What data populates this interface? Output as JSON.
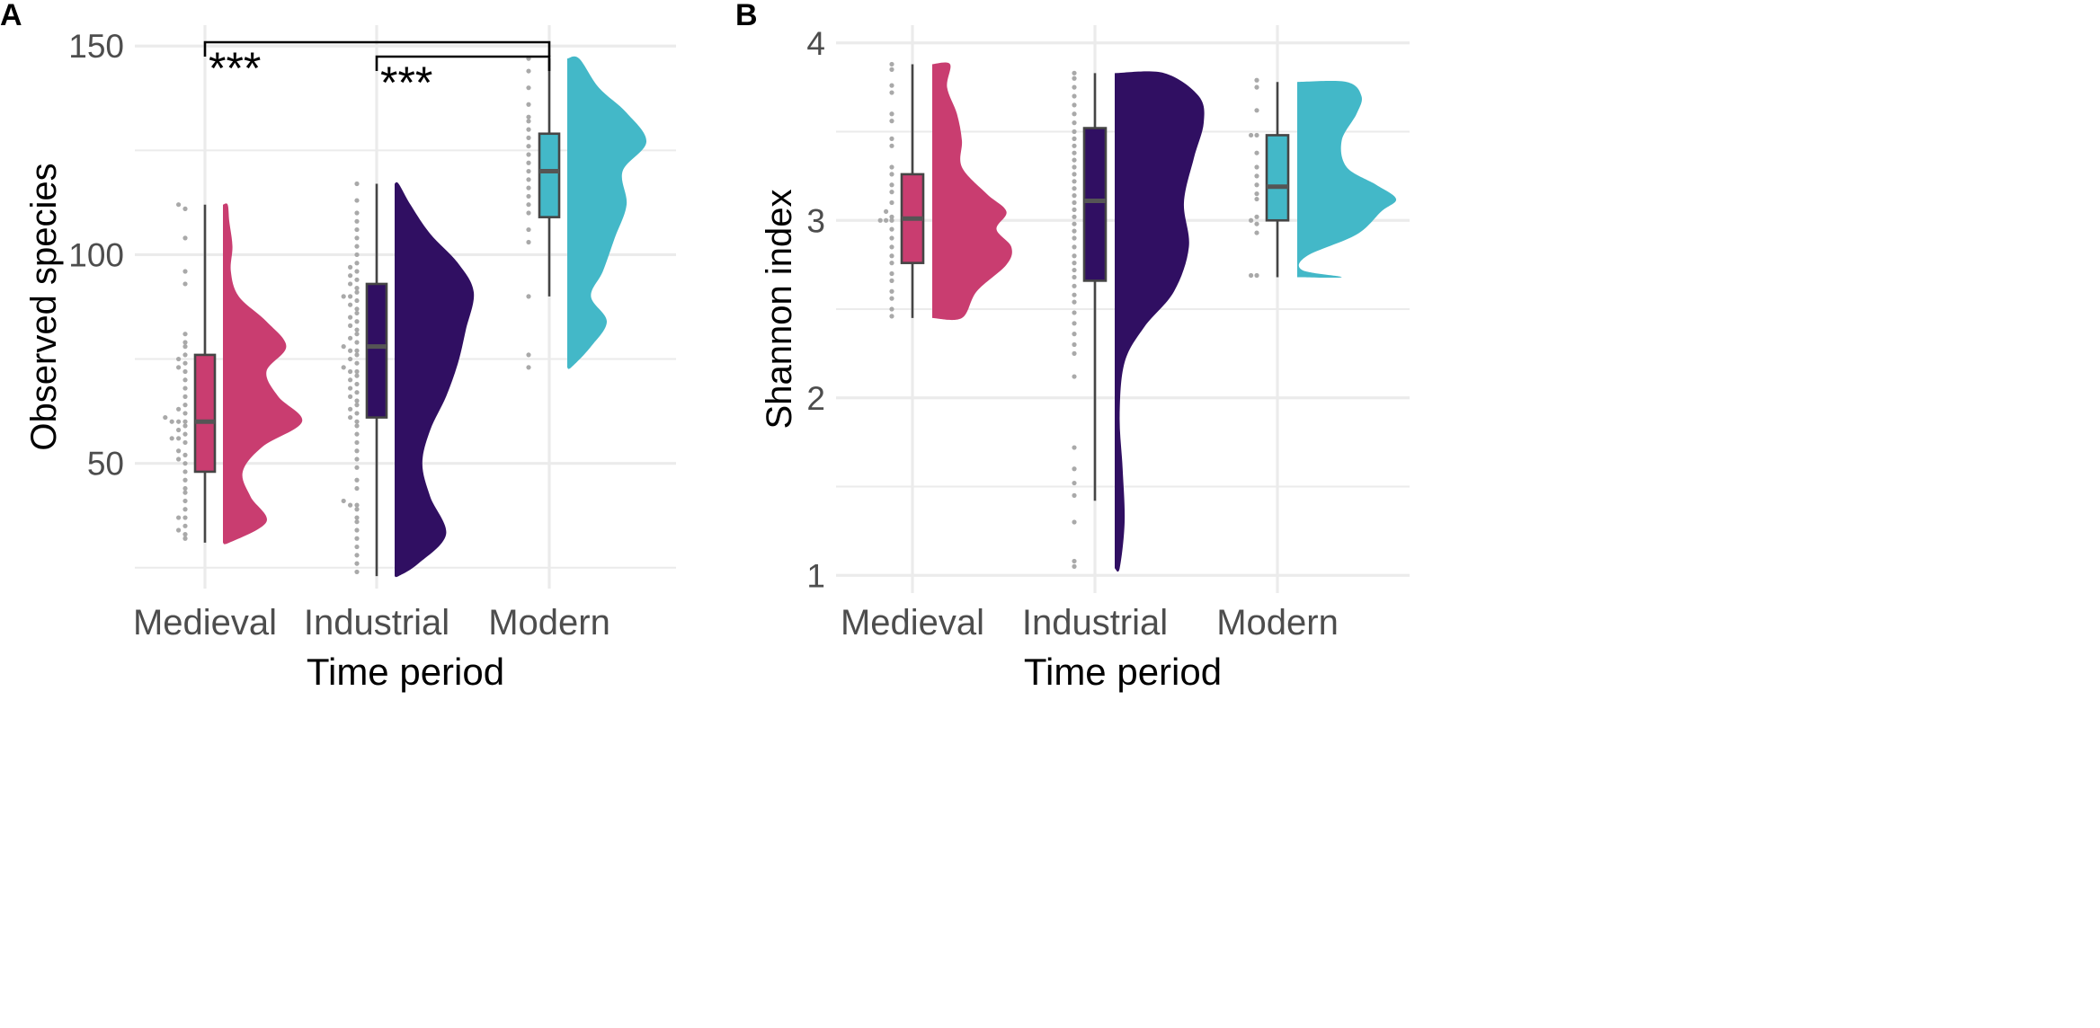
{
  "colors": {
    "grid": "#ebebeb",
    "tick_text": "#4d4d4d",
    "axis_title": "#000000",
    "box_outline": "#454545",
    "dots": "#a9a9a9",
    "medieval": "#c93d70",
    "industrial": "#300f62",
    "modern": "#43b8c8"
  },
  "chart_data": [
    {
      "panel_label": "A",
      "type": "raincloud",
      "xlabel": "Time period",
      "ylabel": "Observed species",
      "ylim": [
        20,
        155
      ],
      "y_major_ticks": [
        50,
        100,
        150
      ],
      "y_minor_ticks": [
        25,
        75,
        125
      ],
      "categories": [
        "Medieval",
        "Industrial",
        "Modern"
      ],
      "grid": true,
      "series": [
        {
          "category": "Medieval",
          "box": {
            "min": 31,
            "q1": 48,
            "median": 60,
            "q3": 76,
            "max": 112
          },
          "points": [
            32,
            33,
            34,
            35,
            37,
            37,
            39,
            41,
            43,
            44,
            46,
            48,
            50,
            51,
            52,
            53,
            55,
            56,
            56,
            57,
            58,
            59,
            60,
            60,
            60,
            61,
            62,
            63,
            64,
            66,
            68,
            70,
            72,
            73,
            74,
            75,
            76,
            78,
            79,
            81,
            93,
            96,
            104,
            111,
            112
          ],
          "density": [
            [
              31,
              0.08
            ],
            [
              36,
              0.55
            ],
            [
              42,
              0.35
            ],
            [
              48,
              0.25
            ],
            [
              54,
              0.5
            ],
            [
              60,
              1.0
            ],
            [
              66,
              0.7
            ],
            [
              72,
              0.55
            ],
            [
              78,
              0.8
            ],
            [
              84,
              0.55
            ],
            [
              90,
              0.2
            ],
            [
              96,
              0.1
            ],
            [
              102,
              0.12
            ],
            [
              108,
              0.08
            ],
            [
              112,
              0.06
            ]
          ]
        },
        {
          "category": "Industrial",
          "box": {
            "min": 23,
            "q1": 61,
            "median": 78,
            "q3": 93,
            "max": 117
          },
          "points": [
            24,
            26,
            28,
            30,
            32,
            34,
            36,
            37,
            39,
            40,
            40,
            41,
            44,
            46,
            49,
            51,
            53,
            55,
            57,
            59,
            60,
            61,
            62,
            63,
            64,
            65,
            66,
            67,
            68,
            69,
            70,
            71,
            72,
            72,
            73,
            74,
            75,
            76,
            77,
            77,
            78,
            79,
            80,
            81,
            82,
            83,
            84,
            85,
            86,
            87,
            88,
            89,
            90,
            90,
            91,
            92,
            93,
            94,
            95,
            96,
            97,
            98,
            100,
            102,
            104,
            106,
            108,
            110,
            113,
            117
          ],
          "density": [
            [
              23,
              0.05
            ],
            [
              26,
              0.3
            ],
            [
              33,
              0.65
            ],
            [
              42,
              0.45
            ],
            [
              50,
              0.35
            ],
            [
              58,
              0.45
            ],
            [
              66,
              0.65
            ],
            [
              74,
              0.8
            ],
            [
              82,
              0.9
            ],
            [
              91,
              1.0
            ],
            [
              98,
              0.8
            ],
            [
              105,
              0.45
            ],
            [
              112,
              0.2
            ],
            [
              117,
              0.05
            ]
          ]
        },
        {
          "category": "Modern",
          "box": {
            "min": 90,
            "q1": 109,
            "median": 120,
            "q3": 129,
            "max": 147
          },
          "points": [
            73,
            76,
            90,
            103,
            106,
            110,
            112,
            114,
            116,
            118,
            120,
            122,
            124,
            126,
            128,
            130,
            132,
            133,
            136,
            140,
            144,
            147
          ],
          "density": [
            [
              73,
              0.05
            ],
            [
              78,
              0.3
            ],
            [
              84,
              0.5
            ],
            [
              90,
              0.3
            ],
            [
              96,
              0.45
            ],
            [
              104,
              0.6
            ],
            [
              112,
              0.75
            ],
            [
              120,
              0.7
            ],
            [
              127,
              1.0
            ],
            [
              134,
              0.75
            ],
            [
              140,
              0.4
            ],
            [
              147,
              0.15
            ]
          ]
        }
      ],
      "annotations": [
        {
          "comparison": [
            "Medieval",
            "Modern"
          ],
          "label": "***"
        },
        {
          "comparison": [
            "Industrial",
            "Modern"
          ],
          "label": "***"
        }
      ]
    },
    {
      "panel_label": "B",
      "type": "raincloud",
      "xlabel": "Time period",
      "ylabel": "Shannon index",
      "ylim": [
        0.9,
        4.1
      ],
      "y_major_ticks": [
        1,
        2,
        3,
        4
      ],
      "y_minor_ticks": [
        1.5,
        2.5,
        3.5
      ],
      "categories": [
        "Medieval",
        "Industrial",
        "Modern"
      ],
      "grid": true,
      "series": [
        {
          "category": "Medieval",
          "box": {
            "min": 2.45,
            "q1": 2.76,
            "median": 3.01,
            "q3": 3.26,
            "max": 3.88
          },
          "points": [
            2.46,
            2.5,
            2.56,
            2.6,
            2.66,
            2.7,
            2.76,
            2.8,
            2.85,
            2.9,
            2.95,
            3.0,
            3.0,
            3.0,
            3.02,
            3.05,
            3.1,
            3.16,
            3.2,
            3.26,
            3.3,
            3.42,
            3.46,
            3.56,
            3.6,
            3.72,
            3.76,
            3.85,
            3.88
          ],
          "density": [
            [
              2.45,
              0.3
            ],
            [
              2.6,
              0.45
            ],
            [
              2.75,
              0.75
            ],
            [
              2.85,
              0.8
            ],
            [
              2.95,
              0.65
            ],
            [
              3.05,
              0.75
            ],
            [
              3.15,
              0.55
            ],
            [
              3.3,
              0.3
            ],
            [
              3.45,
              0.3
            ],
            [
              3.6,
              0.25
            ],
            [
              3.75,
              0.15
            ],
            [
              3.88,
              0.18
            ]
          ]
        },
        {
          "category": "Industrial",
          "box": {
            "min": 1.42,
            "q1": 2.66,
            "median": 3.11,
            "q3": 3.52,
            "max": 3.83
          },
          "points": [
            1.05,
            1.08,
            1.3,
            1.45,
            1.52,
            1.6,
            1.72,
            2.12,
            2.25,
            2.3,
            2.36,
            2.42,
            2.48,
            2.54,
            2.58,
            2.63,
            2.68,
            2.72,
            2.76,
            2.8,
            2.85,
            2.9,
            2.94,
            2.98,
            3.02,
            3.06,
            3.1,
            3.14,
            3.18,
            3.22,
            3.26,
            3.3,
            3.34,
            3.38,
            3.42,
            3.46,
            3.5,
            3.55,
            3.6,
            3.65,
            3.7,
            3.75,
            3.8,
            3.83
          ],
          "density": [
            [
              1.04,
              0.05
            ],
            [
              1.3,
              0.1
            ],
            [
              1.6,
              0.08
            ],
            [
              1.9,
              0.05
            ],
            [
              2.2,
              0.1
            ],
            [
              2.4,
              0.3
            ],
            [
              2.6,
              0.6
            ],
            [
              2.85,
              0.75
            ],
            [
              3.1,
              0.7
            ],
            [
              3.35,
              0.8
            ],
            [
              3.55,
              0.9
            ],
            [
              3.7,
              0.85
            ],
            [
              3.83,
              0.5
            ]
          ]
        },
        {
          "category": "Modern",
          "box": {
            "min": 2.68,
            "q1": 3.0,
            "median": 3.19,
            "q3": 3.48,
            "max": 3.78
          },
          "points": [
            2.69,
            2.69,
            2.93,
            2.98,
            3.0,
            3.02,
            3.12,
            3.15,
            3.2,
            3.25,
            3.3,
            3.38,
            3.48,
            3.48,
            3.62,
            3.75,
            3.79
          ],
          "density": [
            [
              2.68,
              0.45
            ],
            [
              2.72,
              0.05
            ],
            [
              2.8,
              0.1
            ],
            [
              2.92,
              0.6
            ],
            [
              3.05,
              0.85
            ],
            [
              3.12,
              1.0
            ],
            [
              3.2,
              0.8
            ],
            [
              3.3,
              0.5
            ],
            [
              3.45,
              0.45
            ],
            [
              3.6,
              0.6
            ],
            [
              3.7,
              0.65
            ],
            [
              3.78,
              0.5
            ]
          ]
        }
      ]
    }
  ]
}
